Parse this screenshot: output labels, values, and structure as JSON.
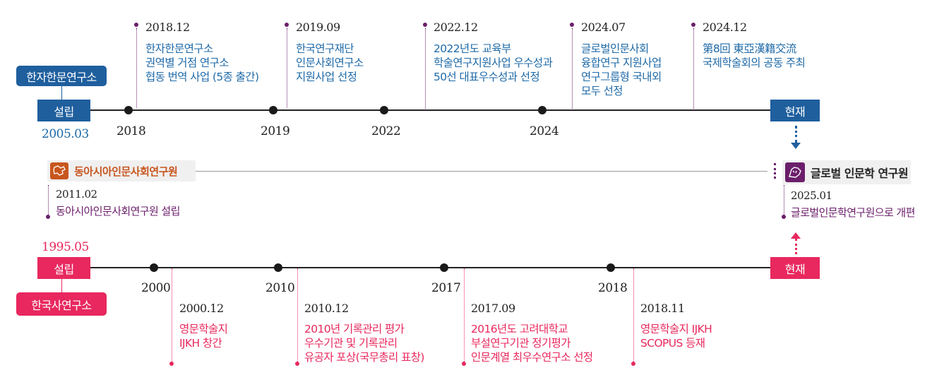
{
  "top": {
    "org_label": "한자한문연구소",
    "start_label": "설립",
    "start_date": "2005.03",
    "end_label": "현재",
    "years": [
      "2018",
      "2019",
      "2022",
      "2024"
    ],
    "events": [
      {
        "date": "2018.12",
        "lines": [
          "한자한문연구소",
          "권역별 거점 연구소",
          "협동 번역 사업 (5종 출간)"
        ]
      },
      {
        "date": "2019.09",
        "lines": [
          "한국연구재단",
          "인문사회연구소",
          "지원사업 선정"
        ]
      },
      {
        "date": "2022.12",
        "lines": [
          "2022년도 교육부",
          "학술연구지원사업 우수성과",
          "50선 대표우수성과 선정"
        ]
      },
      {
        "date": "2024.07",
        "lines": [
          "글로벌인문사회",
          "융합연구 지원사업",
          "연구그룹형 국내외",
          "모두 선정"
        ]
      },
      {
        "date": "2024.12",
        "lines": [
          "第8回 東亞漢籍交流",
          "국제학술회의 공동 주최"
        ]
      }
    ]
  },
  "middle": {
    "left_org": "동아시아인문사회연구원",
    "left_date": "2011.02",
    "left_desc": "동아시아인문사회연구원 설립",
    "right_org": "글로벌 인문학 연구원",
    "right_date": "2025.01",
    "right_desc": "글로벌인문학연구원으로 개편"
  },
  "bottom": {
    "org_label": "한국사연구소",
    "start_label": "설립",
    "start_date": "1995.05",
    "end_label": "현재",
    "years": [
      "2000",
      "2010",
      "2017",
      "2018"
    ],
    "events": [
      {
        "date": "2000.12",
        "lines": [
          "영문학술지",
          "IJKH 창간"
        ]
      },
      {
        "date": "2010.12",
        "lines": [
          "2010년 기록관리 평가",
          "우수기관 및 기록관리",
          "유공자 포상(국무총리 표창)"
        ]
      },
      {
        "date": "2017.09",
        "lines": [
          "2016년도 고려대학교",
          "부설연구기관 정기평가",
          "인문계열 최우수연구소 선정"
        ]
      },
      {
        "date": "2018.11",
        "lines": [
          "영문학술지 IJKH",
          "SCOPUS 등재"
        ]
      }
    ]
  },
  "colors": {
    "blue": "#1f5f9e",
    "red": "#e8285e",
    "purple": "#6b1f6b",
    "orange": "#c8561e"
  }
}
